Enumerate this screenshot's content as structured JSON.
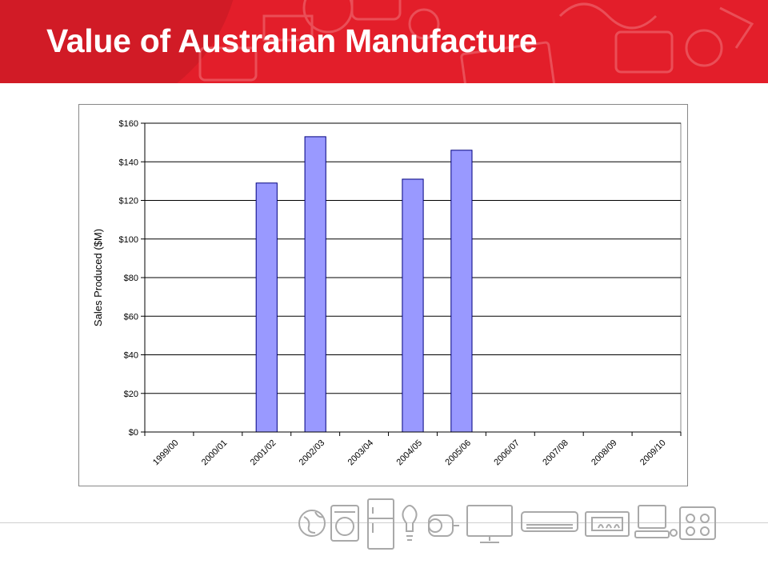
{
  "slide": {
    "title": "Value of Australian Manufacture"
  },
  "colors": {
    "banner": "#e31e2a",
    "bar_fill": "#9999ff",
    "bar_stroke": "#000080"
  },
  "decorations": {
    "footer_icons": [
      "globe-icon",
      "washing-machine-icon",
      "fridge-icon",
      "light-bulb-icon",
      "motor-icon",
      "tv-icon",
      "air-conditioner-icon",
      "heater-icon",
      "computer-icon",
      "stove-icon"
    ]
  },
  "chart_data": {
    "type": "bar",
    "categories": [
      "1999/00",
      "2000/01",
      "2001/02",
      "2002/03",
      "2003/04",
      "2004/05",
      "2005/06",
      "2006/07",
      "2007/08",
      "2008/09",
      "2009/10"
    ],
    "values": [
      null,
      null,
      129,
      153,
      null,
      131,
      146,
      null,
      null,
      null,
      null
    ],
    "title": "",
    "xlabel": "",
    "ylabel": "Sales Produced ($M)",
    "ylim": [
      0,
      160
    ],
    "yticks": [
      0,
      20,
      40,
      60,
      80,
      100,
      120,
      140,
      160
    ],
    "ytick_labels": [
      "$0",
      "$20",
      "$40",
      "$60",
      "$80",
      "$100",
      "$120",
      "$140",
      "$160"
    ],
    "grid": true,
    "legend": "none"
  }
}
